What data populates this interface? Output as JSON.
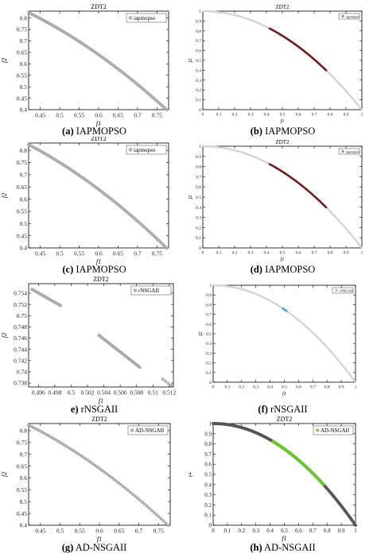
{
  "panels": [
    {
      "id": "a",
      "caption_letter": "(a)",
      "caption_text": " IAPMOPSO",
      "chart_data": {
        "type": "scatter",
        "title": "ZDT2",
        "xlabel": "f1",
        "ylabel": "f2",
        "xlim": [
          0.42,
          0.78
        ],
        "ylim": [
          0.4,
          0.83
        ],
        "xticks": [
          0.45,
          0.5,
          0.55,
          0.6,
          0.65,
          0.7,
          0.75
        ],
        "yticks": [
          0.4,
          0.45,
          0.5,
          0.55,
          0.6,
          0.65,
          0.7,
          0.75,
          0.8
        ],
        "legend": [
          "iapmopso"
        ],
        "legend_position": "top-right",
        "grid": false,
        "series": [
          {
            "name": "iapmopso",
            "color": "#888888",
            "marker": "circle",
            "x_range": [
              0.42,
              0.775
            ],
            "count": 90,
            "relation": "y = 1 - x^2"
          }
        ]
      }
    },
    {
      "id": "b",
      "caption_letter": "(b)",
      "caption_text": " IAPMOPSO",
      "chart_data": {
        "type": "line",
        "title": "ZDT2",
        "xlabel": "f1",
        "ylabel": "f2",
        "xlim": [
          0,
          1
        ],
        "ylim": [
          0,
          1
        ],
        "xticks": [
          0,
          0.1,
          0.2,
          0.3,
          0.4,
          0.5,
          0.6,
          0.7,
          0.8,
          0.9,
          1
        ],
        "yticks": [
          0,
          0.1,
          0.2,
          0.3,
          0.4,
          0.5,
          0.6,
          0.7,
          0.8,
          0.9,
          1
        ],
        "legend": [
          "iapmopso"
        ],
        "legend_position": "top-right",
        "grid": false,
        "series": [
          {
            "color": "#d4d4d4",
            "x_range": [
              0,
              1
            ],
            "relation": "y = 1 - x^2"
          },
          {
            "name": "iapmopso",
            "color": "#6e1c1c",
            "x_range": [
              0.42,
              0.775
            ],
            "relation": "y = 1 - x^2"
          }
        ]
      }
    },
    {
      "id": "c",
      "caption_letter": "(c)",
      "caption_text": " IAPMOPSO",
      "chart_data": {
        "type": "scatter",
        "title": "ZDT2",
        "xlabel": "f1",
        "ylabel": "f2",
        "xlim": [
          0.42,
          0.78
        ],
        "ylim": [
          0.4,
          0.83
        ],
        "xticks": [
          0.45,
          0.5,
          0.55,
          0.6,
          0.65,
          0.7,
          0.75
        ],
        "yticks": [
          0.4,
          0.45,
          0.5,
          0.55,
          0.6,
          0.65,
          0.7,
          0.75,
          0.8
        ],
        "legend": [
          "iapmopso"
        ],
        "legend_position": "top-right",
        "grid": false,
        "series": [
          {
            "name": "iapmopso",
            "color": "#888888",
            "marker": "circle",
            "x_range": [
              0.42,
              0.775
            ],
            "count": 90,
            "relation": "y = 1 - x^2"
          }
        ]
      }
    },
    {
      "id": "d",
      "caption_letter": "(d)",
      "caption_text": " IAPMOPSO",
      "chart_data": {
        "type": "line",
        "title": "ZDT2",
        "xlabel": "f1",
        "ylabel": "f2",
        "xlim": [
          0,
          1
        ],
        "ylim": [
          0,
          1
        ],
        "xticks": [
          0,
          0.1,
          0.2,
          0.3,
          0.4,
          0.5,
          0.6,
          0.7,
          0.8,
          0.9,
          1
        ],
        "yticks": [
          0,
          0.1,
          0.2,
          0.3,
          0.4,
          0.5,
          0.6,
          0.7,
          0.8,
          0.9,
          1
        ],
        "legend": [
          "iapmopso"
        ],
        "legend_position": "top-right",
        "grid": false,
        "series": [
          {
            "color": "#d4d4d4",
            "x_range": [
              0,
              1
            ],
            "relation": "y = 1 - x^2"
          },
          {
            "name": "iapmopso",
            "color": "#6e1c1c",
            "x_range": [
              0.42,
              0.775
            ],
            "relation": "y = 1 - x^2"
          }
        ]
      }
    },
    {
      "id": "e",
      "caption_letter": "e)",
      "caption_text": " rNSGAII",
      "chart_data": {
        "type": "scatter",
        "title": "ZDT2",
        "xlabel": "f1",
        "ylabel": "f2",
        "xlim": [
          0.4948,
          0.5125
        ],
        "ylim": [
          0.7373,
          0.7557
        ],
        "xticks": [
          0.496,
          0.498,
          0.5,
          0.502,
          0.504,
          0.506,
          0.508,
          0.51,
          0.512
        ],
        "xtick_labels": [
          "0.496",
          "0.498",
          "0.5",
          "0.502",
          "0.504",
          "0.506",
          "0.508",
          "0.51",
          "0.512"
        ],
        "yticks": [
          0.738,
          0.74,
          0.742,
          0.744,
          0.746,
          0.748,
          0.75,
          0.752,
          0.754
        ],
        "legend": [
          "rNSGAII"
        ],
        "legend_position": "top-right",
        "grid": false,
        "series": [
          {
            "name": "rNSGAII",
            "color": "#888888",
            "marker": "circle",
            "segments": [
              {
                "x_range": [
                  0.4952,
                  0.4987
                ],
                "y_range": [
                  0.7547,
                  0.7518
                ],
                "count": 22
              },
              {
                "x_range": [
                  0.5034,
                  0.5084
                ],
                "y_range": [
                  0.7465,
                  0.7408
                ],
                "count": 34
              },
              {
                "x_range": [
                  0.5112,
                  0.5122
                ],
                "y_range": [
                  0.7387,
                  0.7376
                ],
                "count": 4
              }
            ]
          }
        ]
      }
    },
    {
      "id": "f",
      "caption_letter": "(f)",
      "caption_text": " rNSGAII",
      "chart_data": {
        "type": "line",
        "title": "",
        "xlabel": "f1",
        "ylabel": "f2",
        "xlim": [
          0,
          1
        ],
        "ylim": [
          0,
          1
        ],
        "xticks": [
          0,
          0.1,
          0.2,
          0.3,
          0.4,
          0.5,
          0.6,
          0.7,
          0.8,
          0.9,
          1
        ],
        "yticks": [
          0,
          0.1,
          0.2,
          0.3,
          0.4,
          0.5,
          0.6,
          0.7,
          0.8,
          0.9,
          1
        ],
        "legend": [
          "rNSGAII"
        ],
        "legend_position": "top-right",
        "grid": false,
        "series": [
          {
            "color": "#d4d4d4",
            "x_range": [
              0,
              1
            ],
            "relation": "y = 1 - x^2"
          },
          {
            "name": "rNSGAII",
            "color": "#4aa3d8",
            "x_range": [
              0.49,
              0.515
            ],
            "relation": "y = 1 - x^2"
          }
        ]
      }
    },
    {
      "id": "g",
      "caption_letter": "(g)",
      "caption_text": " AD-NSGAII",
      "chart_data": {
        "type": "scatter",
        "title": "ZDT2",
        "xlabel": "f1",
        "ylabel": "f2",
        "xlim": [
          0.42,
          0.78
        ],
        "ylim": [
          0.4,
          0.83
        ],
        "xticks": [
          0.45,
          0.5,
          0.55,
          0.6,
          0.65,
          0.7,
          0.75
        ],
        "yticks": [
          0.4,
          0.45,
          0.5,
          0.55,
          0.6,
          0.65,
          0.7,
          0.75,
          0.8
        ],
        "legend": [
          "AD-NSGAII"
        ],
        "legend_position": "top-right",
        "grid": false,
        "series": [
          {
            "name": "AD-NSGAII",
            "color": "#888888",
            "marker": "circle",
            "x_range": [
              0.42,
              0.775
            ],
            "count": 60,
            "relation": "y = 1 - x^2"
          }
        ]
      }
    },
    {
      "id": "h",
      "caption_letter": "(h)",
      "caption_text": " AD-NSGAII",
      "chart_data": {
        "type": "scatter",
        "title": "ZDT2",
        "xlabel": "f1",
        "ylabel": "f2",
        "xlim": [
          0,
          1
        ],
        "ylim": [
          0,
          1
        ],
        "xticks": [
          0,
          0.1,
          0.2,
          0.3,
          0.4,
          0.5,
          0.6,
          0.7,
          0.8,
          0.9,
          1
        ],
        "yticks": [
          0,
          0.1,
          0.2,
          0.3,
          0.4,
          0.5,
          0.6,
          0.7,
          0.8,
          0.9,
          1
        ],
        "legend": [
          "AD-NSGAII"
        ],
        "legend_position": "top-right",
        "grid": false,
        "series": [
          {
            "color": "#555555",
            "x_range": [
              0,
              1
            ],
            "relation": "y = 1 - x^2",
            "count": 120
          },
          {
            "name": "AD-NSGAII",
            "color": "#66cc22",
            "x_range": [
              0.42,
              0.775
            ],
            "relation": "y = 1 - x^2",
            "count": 45
          }
        ]
      }
    }
  ]
}
